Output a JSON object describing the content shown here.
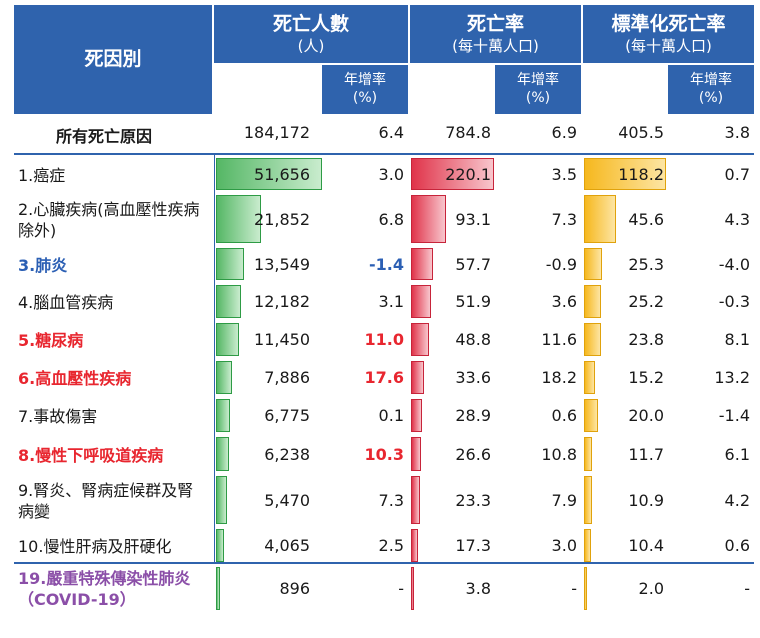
{
  "header": {
    "cause_label": "死因別",
    "deaths_title": "死亡人數",
    "deaths_unit": "(人)",
    "rate_title": "死亡率",
    "rate_unit": "(每十萬人口)",
    "std_title": "標準化死亡率",
    "std_unit": "(每十萬人口)",
    "growth_label": "年增率",
    "growth_unit": "(%)"
  },
  "colors": {
    "header_bg": "#2f63ad",
    "deaths_bar": "#55b765",
    "rate_bar": "#e0344a",
    "std_bar": "#f6b81e",
    "blue_label": "#2b5fb4",
    "red_label": "#e8262f",
    "purple_label": "#8b4fa8"
  },
  "chart_data": {
    "type": "table",
    "columns": [
      "死因別",
      "死亡人數(人)",
      "年增率(%)",
      "死亡率(每十萬人口)",
      "年增率(%)",
      "標準化死亡率(每十萬人口)",
      "年增率(%)"
    ],
    "total": {
      "cause": "所有死亡原因",
      "deaths": "184,172",
      "deaths_growth": "6.4",
      "rate": "784.8",
      "rate_growth": "6.9",
      "std_rate": "405.5",
      "std_growth": "3.8"
    },
    "rows": [
      {
        "cause": "1.癌症",
        "deaths": "51,656",
        "deaths_value": 51656,
        "deaths_growth": "3.0",
        "rate": "220.1",
        "rate_value": 220.1,
        "rate_growth": "3.5",
        "std_rate": "118.2",
        "std_value": 118.2,
        "std_growth": "0.7",
        "label_color": "default",
        "growth_color": "default"
      },
      {
        "cause": "2.心臟疾病(高血壓性疾病除外)",
        "deaths": "21,852",
        "deaths_value": 21852,
        "deaths_growth": "6.8",
        "rate": "93.1",
        "rate_value": 93.1,
        "rate_growth": "7.3",
        "std_rate": "45.6",
        "std_value": 45.6,
        "std_growth": "4.3",
        "label_color": "default",
        "growth_color": "default"
      },
      {
        "cause": "3.肺炎",
        "deaths": "13,549",
        "deaths_value": 13549,
        "deaths_growth": "-1.4",
        "rate": "57.7",
        "rate_value": 57.7,
        "rate_growth": "-0.9",
        "std_rate": "25.3",
        "std_value": 25.3,
        "std_growth": "-4.0",
        "label_color": "blue",
        "growth_color": "blue"
      },
      {
        "cause": "4.腦血管疾病",
        "deaths": "12,182",
        "deaths_value": 12182,
        "deaths_growth": "3.1",
        "rate": "51.9",
        "rate_value": 51.9,
        "rate_growth": "3.6",
        "std_rate": "25.2",
        "std_value": 25.2,
        "std_growth": "-0.3",
        "label_color": "default",
        "growth_color": "default"
      },
      {
        "cause": "5.糖尿病",
        "deaths": "11,450",
        "deaths_value": 11450,
        "deaths_growth": "11.0",
        "rate": "48.8",
        "rate_value": 48.8,
        "rate_growth": "11.6",
        "std_rate": "23.8",
        "std_value": 23.8,
        "std_growth": "8.1",
        "label_color": "red",
        "growth_color": "red"
      },
      {
        "cause": "6.高血壓性疾病",
        "deaths": "7,886",
        "deaths_value": 7886,
        "deaths_growth": "17.6",
        "rate": "33.6",
        "rate_value": 33.6,
        "rate_growth": "18.2",
        "std_rate": "15.2",
        "std_value": 15.2,
        "std_growth": "13.2",
        "label_color": "red",
        "growth_color": "red"
      },
      {
        "cause": "7.事故傷害",
        "deaths": "6,775",
        "deaths_value": 6775,
        "deaths_growth": "0.1",
        "rate": "28.9",
        "rate_value": 28.9,
        "rate_growth": "0.6",
        "std_rate": "20.0",
        "std_value": 20.0,
        "std_growth": "-1.4",
        "label_color": "default",
        "growth_color": "default"
      },
      {
        "cause": "8.慢性下呼吸道疾病",
        "deaths": "6,238",
        "deaths_value": 6238,
        "deaths_growth": "10.3",
        "rate": "26.6",
        "rate_value": 26.6,
        "rate_growth": "10.8",
        "std_rate": "11.7",
        "std_value": 11.7,
        "std_growth": "6.1",
        "label_color": "red",
        "growth_color": "red"
      },
      {
        "cause": "9.腎炎、腎病症候群及腎病變",
        "deaths": "5,470",
        "deaths_value": 5470,
        "deaths_growth": "7.3",
        "rate": "23.3",
        "rate_value": 23.3,
        "rate_growth": "7.9",
        "std_rate": "10.9",
        "std_value": 10.9,
        "std_growth": "4.2",
        "label_color": "default",
        "growth_color": "default"
      },
      {
        "cause": "10.慢性肝病及肝硬化",
        "deaths": "4,065",
        "deaths_value": 4065,
        "deaths_growth": "2.5",
        "rate": "17.3",
        "rate_value": 17.3,
        "rate_growth": "3.0",
        "std_rate": "10.4",
        "std_value": 10.4,
        "std_growth": "0.6",
        "label_color": "default",
        "growth_color": "default"
      },
      {
        "cause": "19.嚴重特殊傳染性肺炎（COVID-19）",
        "deaths": "896",
        "deaths_value": 896,
        "deaths_growth": "-",
        "rate": "3.8",
        "rate_value": 3.8,
        "rate_growth": "-",
        "std_rate": "2.0",
        "std_value": 2.0,
        "std_growth": "-",
        "label_color": "purple",
        "growth_color": "default"
      }
    ]
  }
}
